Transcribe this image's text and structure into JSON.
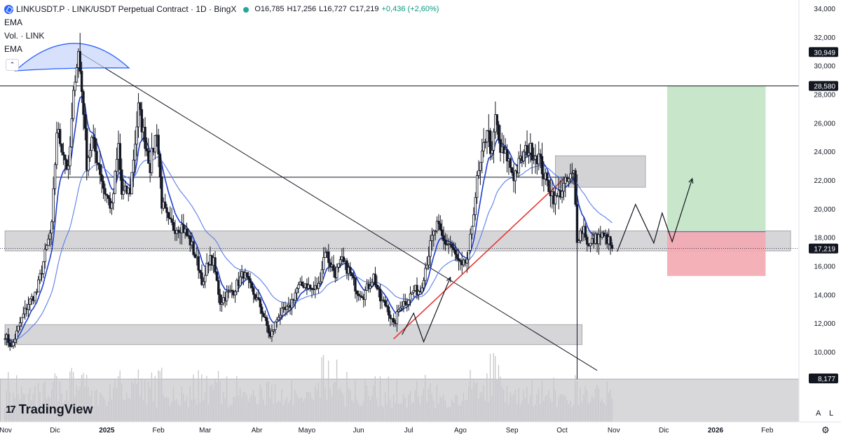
{
  "header": {
    "symbol": "LINKUSDT.P · LINK/USDT Perpetual Contract · 1D · BingX",
    "open": "O16,785",
    "high": "H17,256",
    "low": "L16,727",
    "close": "C17,219",
    "change": "+0,436 (+2,60%)",
    "indicators": [
      "EMA",
      "Vol. · LINK",
      "EMA"
    ],
    "collapse_icon": "chevron-up-icon"
  },
  "branding": {
    "name": "TradingView"
  },
  "corner_buttons": {
    "auto": "A",
    "log": "L"
  },
  "colors": {
    "up_down_candle": "#131722",
    "ema_fast": "#1e3fd0",
    "ema_slow": "#5b7fe8",
    "zone": "#c8c8cc",
    "target": "#c8e6c9",
    "stop": "#f4a9b0",
    "trendline_red": "#e53935"
  },
  "chart_data": {
    "type": "candlestick",
    "title": "LINKUSDT.P · LINK/USDT Perpetual Contract · 1D · BingX",
    "y_axis": {
      "ticks": [
        "34,000",
        "32,000",
        "30,000",
        "28,000",
        "26,000",
        "24,000",
        "22,000",
        "20,000",
        "18,000",
        "16,000",
        "14,000",
        "12,000",
        "10,000"
      ],
      "range": [
        8.5,
        34.5
      ]
    },
    "x_axis": {
      "ticks": [
        "Nov",
        "Dic",
        "2025",
        "Feb",
        "Mar",
        "Abr",
        "Mayo",
        "Jun",
        "Jul",
        "Ago",
        "Sep",
        "Oct",
        "Nov",
        "Dic",
        "2026",
        "Feb"
      ]
    },
    "price_labels": [
      {
        "label": "30,949",
        "value": 30.949,
        "kind": "high-marker"
      },
      {
        "label": "28,580",
        "value": 28.58,
        "kind": "target-line"
      },
      {
        "label": "17,219",
        "value": 17.219,
        "kind": "last-price"
      },
      {
        "label": "8,177",
        "value": 8.177,
        "kind": "volume"
      }
    ],
    "price_path": [
      [
        "2024-11-01",
        11.2
      ],
      [
        "2024-11-05",
        10.3
      ],
      [
        "2024-11-10",
        12.0
      ],
      [
        "2024-11-15",
        13.4
      ],
      [
        "2024-11-20",
        14.2
      ],
      [
        "2024-11-25",
        16.8
      ],
      [
        "2024-11-29",
        18.7
      ],
      [
        "2024-12-02",
        25.5
      ],
      [
        "2024-12-06",
        24.0
      ],
      [
        "2024-12-09",
        22.5
      ],
      [
        "2024-12-13",
        29.5
      ],
      [
        "2024-12-15",
        30.9
      ],
      [
        "2024-12-18",
        27.0
      ],
      [
        "2024-12-20",
        23.2
      ],
      [
        "2024-12-23",
        24.8
      ],
      [
        "2024-12-27",
        23.2
      ],
      [
        "2024-12-30",
        21.5
      ],
      [
        "2025-01-04",
        20.0
      ],
      [
        "2025-01-08",
        24.4
      ],
      [
        "2025-01-10",
        21.0
      ],
      [
        "2025-01-15",
        21.3
      ],
      [
        "2025-01-20",
        27.0
      ],
      [
        "2025-01-23",
        25.3
      ],
      [
        "2025-01-27",
        23.0
      ],
      [
        "2025-01-31",
        25.6
      ],
      [
        "2025-02-03",
        20.4
      ],
      [
        "2025-02-07",
        19.0
      ],
      [
        "2025-02-10",
        18.7
      ],
      [
        "2025-02-15",
        18.8
      ],
      [
        "2025-02-20",
        17.7
      ],
      [
        "2025-02-25",
        16.0
      ],
      [
        "2025-02-28",
        14.6
      ],
      [
        "2025-03-03",
        16.5
      ],
      [
        "2025-03-06",
        16.2
      ],
      [
        "2025-03-10",
        13.5
      ],
      [
        "2025-03-14",
        14.0
      ],
      [
        "2025-03-18",
        14.3
      ],
      [
        "2025-03-24",
        15.5
      ],
      [
        "2025-03-28",
        14.5
      ],
      [
        "2025-04-03",
        13.2
      ],
      [
        "2025-04-07",
        11.8
      ],
      [
        "2025-04-09",
        11.0
      ],
      [
        "2025-04-14",
        12.6
      ],
      [
        "2025-04-20",
        13.0
      ],
      [
        "2025-04-25",
        14.4
      ],
      [
        "2025-04-30",
        14.8
      ],
      [
        "2025-05-04",
        14.3
      ],
      [
        "2025-05-08",
        14.6
      ],
      [
        "2025-05-12",
        17.2
      ],
      [
        "2025-05-14",
        16.4
      ],
      [
        "2025-05-18",
        15.5
      ],
      [
        "2025-05-22",
        16.3
      ],
      [
        "2025-05-26",
        15.7
      ],
      [
        "2025-05-31",
        14.3
      ],
      [
        "2025-06-04",
        14.0
      ],
      [
        "2025-06-10",
        15.3
      ],
      [
        "2025-06-14",
        13.6
      ],
      [
        "2025-06-18",
        13.2
      ],
      [
        "2025-06-22",
        11.8
      ],
      [
        "2025-06-26",
        13.3
      ],
      [
        "2025-06-30",
        13.6
      ],
      [
        "2025-07-04",
        14.3
      ],
      [
        "2025-07-08",
        14.3
      ],
      [
        "2025-07-11",
        15.9
      ],
      [
        "2025-07-15",
        17.9
      ],
      [
        "2025-07-18",
        18.8
      ],
      [
        "2025-07-22",
        17.7
      ],
      [
        "2025-07-26",
        17.5
      ],
      [
        "2025-07-30",
        16.4
      ],
      [
        "2025-08-02",
        15.8
      ],
      [
        "2025-08-06",
        16.7
      ],
      [
        "2025-08-09",
        20.0
      ],
      [
        "2025-08-11",
        21.9
      ],
      [
        "2025-08-14",
        23.5
      ],
      [
        "2025-08-17",
        25.8
      ],
      [
        "2025-08-20",
        23.6
      ],
      [
        "2025-08-22",
        26.4
      ],
      [
        "2025-08-25",
        24.0
      ],
      [
        "2025-08-29",
        23.6
      ],
      [
        "2025-09-02",
        22.3
      ],
      [
        "2025-09-06",
        23.3
      ],
      [
        "2025-09-10",
        24.2
      ],
      [
        "2025-09-13",
        24.0
      ],
      [
        "2025-09-17",
        23.6
      ],
      [
        "2025-09-21",
        22.0
      ],
      [
        "2025-09-24",
        21.3
      ],
      [
        "2025-09-27",
        20.6
      ],
      [
        "2025-10-01",
        21.4
      ],
      [
        "2025-10-05",
        22.0
      ],
      [
        "2025-10-08",
        22.4
      ],
      [
        "2025-10-10",
        18.0
      ],
      [
        "2025-10-14",
        18.7
      ],
      [
        "2025-10-17",
        17.3
      ],
      [
        "2025-10-20",
        17.8
      ],
      [
        "2025-10-24",
        18.1
      ],
      [
        "2025-10-28",
        17.9
      ],
      [
        "2025-10-31",
        17.22
      ]
    ],
    "zones": [
      {
        "name": "resistance-zone",
        "y_range": [
          17.05,
          18.45
        ],
        "x_range": [
          "2024-11-01",
          "2026-02-15"
        ]
      },
      {
        "name": "support-zone",
        "y_range": [
          10.5,
          11.9
        ],
        "x_range": [
          "2024-11-01",
          "2025-10-13"
        ]
      },
      {
        "name": "supply-zone",
        "y_range": [
          21.5,
          23.7
        ],
        "x_range": [
          "2025-09-27",
          "2025-11-20"
        ]
      },
      {
        "name": "target-zone",
        "y_range": [
          18.4,
          28.58
        ],
        "x_range": [
          "2025-12-03",
          "2026-01-31"
        ]
      },
      {
        "name": "stop-zone",
        "y_range": [
          15.3,
          18.4
        ],
        "x_range": [
          "2025-12-03",
          "2026-01-31"
        ]
      }
    ],
    "lines": [
      {
        "name": "target-line",
        "kind": "horizontal",
        "y": 28.58
      },
      {
        "name": "mid-level-line",
        "kind": "horizontal",
        "y": 22.2,
        "x_range": [
          "2024-12-01",
          "2025-10-08"
        ]
      },
      {
        "name": "descending-trendline",
        "kind": "segment",
        "from": [
          "2024-12-16",
          30.9
        ],
        "to": [
          "2025-10-22",
          8.7
        ]
      },
      {
        "name": "ascending-trendline",
        "kind": "segment",
        "from": [
          "2025-06-22",
          10.9
        ],
        "to": [
          "2025-10-03",
          22.2
        ],
        "color": "red"
      }
    ],
    "projection_path": [
      [
        "2025-11-03",
        17.0
      ],
      [
        "2025-11-14",
        20.3
      ],
      [
        "2025-11-25",
        17.6
      ],
      [
        "2025-11-30",
        19.7
      ],
      [
        "2025-12-06",
        17.7
      ],
      [
        "2025-12-18",
        22.1
      ]
    ],
    "past_path": [
      [
        "2025-06-27",
        11.2
      ],
      [
        "2025-07-04",
        12.7
      ],
      [
        "2025-07-10",
        10.7
      ],
      [
        "2025-07-26",
        15.2
      ]
    ],
    "volume_axis": {
      "label": "8,177"
    }
  }
}
